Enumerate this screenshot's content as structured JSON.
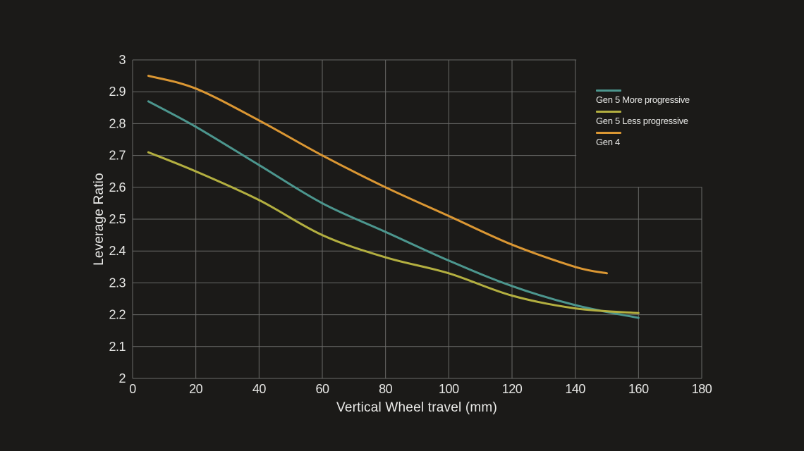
{
  "colors": {
    "background": "#1B1A18",
    "grid_line": "#6A6A68",
    "tick_text": "#E6E6E4",
    "axis_title_text": "#EBEBE9"
  },
  "chart_data": {
    "type": "line",
    "title": "",
    "xlabel": "Vertical Wheel travel (mm)",
    "ylabel": "Leverage Ratio",
    "xlim": [
      0,
      180
    ],
    "ylim": [
      2,
      3
    ],
    "grid": true,
    "legend_position": "inside-top-right",
    "x_ticks": [
      0,
      20,
      40,
      60,
      80,
      100,
      120,
      140,
      160,
      180
    ],
    "x_tick_labels": [
      "0",
      "20",
      "40",
      "60",
      "80",
      "100",
      "120",
      "140",
      "160",
      "180"
    ],
    "y_ticks": [
      2,
      2.1,
      2.2,
      2.3,
      2.4,
      2.5,
      2.6,
      2.7,
      2.8,
      2.9,
      3
    ],
    "y_tick_labels": [
      "2",
      "2.1",
      "2.2",
      "2.3",
      "2.4",
      "2.5",
      "2.6",
      "2.7",
      "2.8",
      "2.9",
      "3"
    ],
    "series": [
      {
        "name": "Gen 5 More progressive",
        "color": "#4C968E",
        "x": [
          5,
          20,
          40,
          60,
          80,
          100,
          120,
          140,
          160
        ],
        "y": [
          2.87,
          2.79,
          2.67,
          2.55,
          2.46,
          2.37,
          2.29,
          2.23,
          2.19
        ]
      },
      {
        "name": "Gen 5 Less progressive",
        "color": "#B3AF40",
        "x": [
          5,
          20,
          40,
          60,
          80,
          100,
          120,
          140,
          160
        ],
        "y": [
          2.71,
          2.65,
          2.56,
          2.45,
          2.38,
          2.33,
          2.26,
          2.22,
          2.205
        ]
      },
      {
        "name": "Gen 4",
        "color": "#DB9733",
        "x": [
          5,
          20,
          40,
          60,
          80,
          100,
          120,
          140,
          150
        ],
        "y": [
          2.95,
          2.91,
          2.81,
          2.7,
          2.6,
          2.51,
          2.42,
          2.35,
          2.33
        ]
      }
    ]
  }
}
